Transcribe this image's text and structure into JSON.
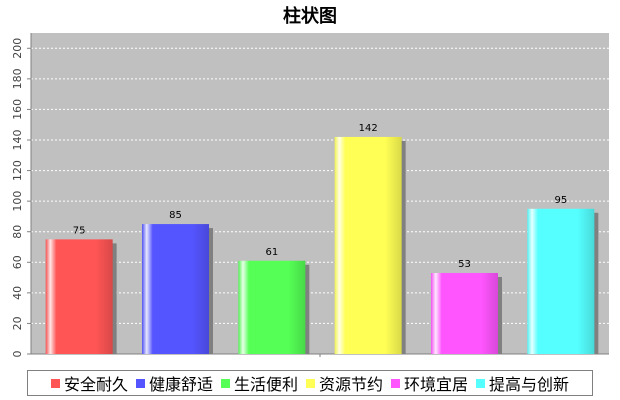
{
  "chart_data": {
    "type": "bar",
    "title": "柱状图",
    "xlabel": "",
    "ylabel": "",
    "categories": [
      "安全耐久",
      "健康舒适",
      "生活便利",
      "资源节约",
      "环境宜居",
      "提高与创新"
    ],
    "values": [
      75,
      85,
      61,
      142,
      53,
      95
    ],
    "ylim": [
      0,
      210
    ],
    "yticks": [
      0,
      20,
      40,
      60,
      80,
      100,
      120,
      140,
      160,
      180,
      200
    ],
    "colors": [
      "#ff5555",
      "#5555ff",
      "#55ff55",
      "#ffff55",
      "#ff55ff",
      "#55ffff"
    ],
    "plot_background": "#c0c0c0",
    "grid": true,
    "legend_position": "bottom",
    "data_labels": true
  }
}
